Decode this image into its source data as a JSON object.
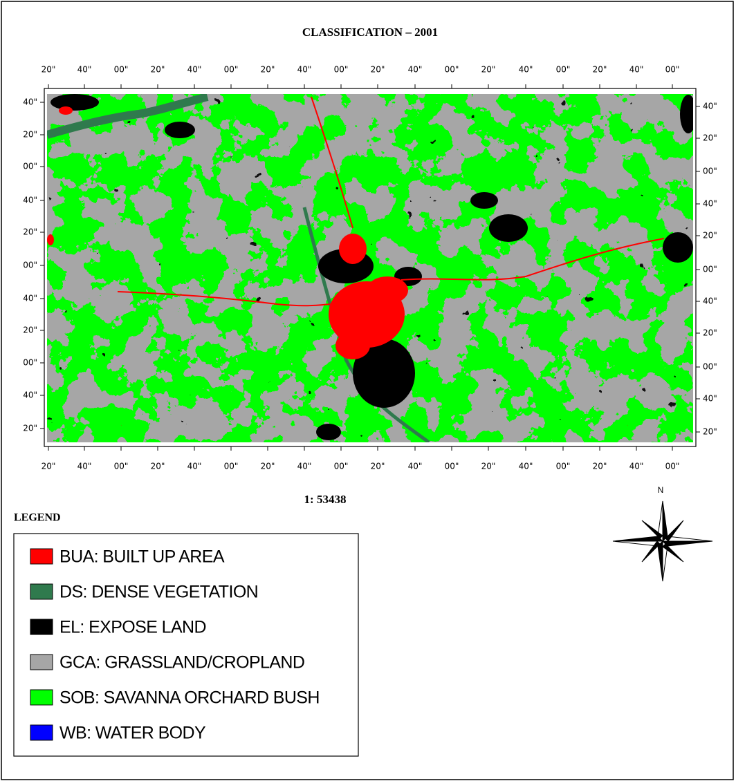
{
  "title": "CLASSIFICATION – 2001",
  "top_labels": [
    "20\"",
    "40\"",
    "00\"",
    "20\"",
    "40\"",
    "00\"",
    "20\"",
    "40\"",
    "00\"",
    "20\"",
    "40\"",
    "00\"",
    "20\"",
    "40\"",
    "00\"",
    "20\"",
    "40\"",
    "00\""
  ],
  "bottom_labels": [
    "20\"",
    "40\"",
    "00\"",
    "20\"",
    "40\"",
    "00\"",
    "20\"",
    "40\"",
    "00\"",
    "20\"",
    "40\"",
    "00\"",
    "20\"",
    "40\"",
    "00\"",
    "20\"",
    "40\"",
    "00\""
  ],
  "left_labels": [
    "40\"",
    "20\"",
    "00\"",
    "40\"",
    "20\"",
    "00\"",
    "40\"",
    "20\"",
    "00\"",
    "40\"",
    "20\""
  ],
  "right_labels": [
    "40\"",
    "20\"",
    "00\"",
    "40\"",
    "20\"",
    "00\"",
    "40\"",
    "20\"",
    "00\"",
    "40\"",
    "20\""
  ],
  "scale": "1: 53438",
  "legend": {
    "title": "LEGEND",
    "items": [
      {
        "label": "BUA: BUILT UP AREA",
        "color": "#ff0000"
      },
      {
        "label": "DS: DENSE VEGETATION",
        "color": "#2f7a4d"
      },
      {
        "label": "EL: EXPOSE LAND",
        "color": "#000000"
      },
      {
        "label": "GCA: GRASSLAND/CROPLAND",
        "color": "#a6a6a6"
      },
      {
        "label": "SOB: SAVANNA ORCHARD BUSH",
        "color": "#00ff00"
      },
      {
        "label": "WB: WATER BODY",
        "color": "#0000ff"
      }
    ]
  },
  "north": "N"
}
